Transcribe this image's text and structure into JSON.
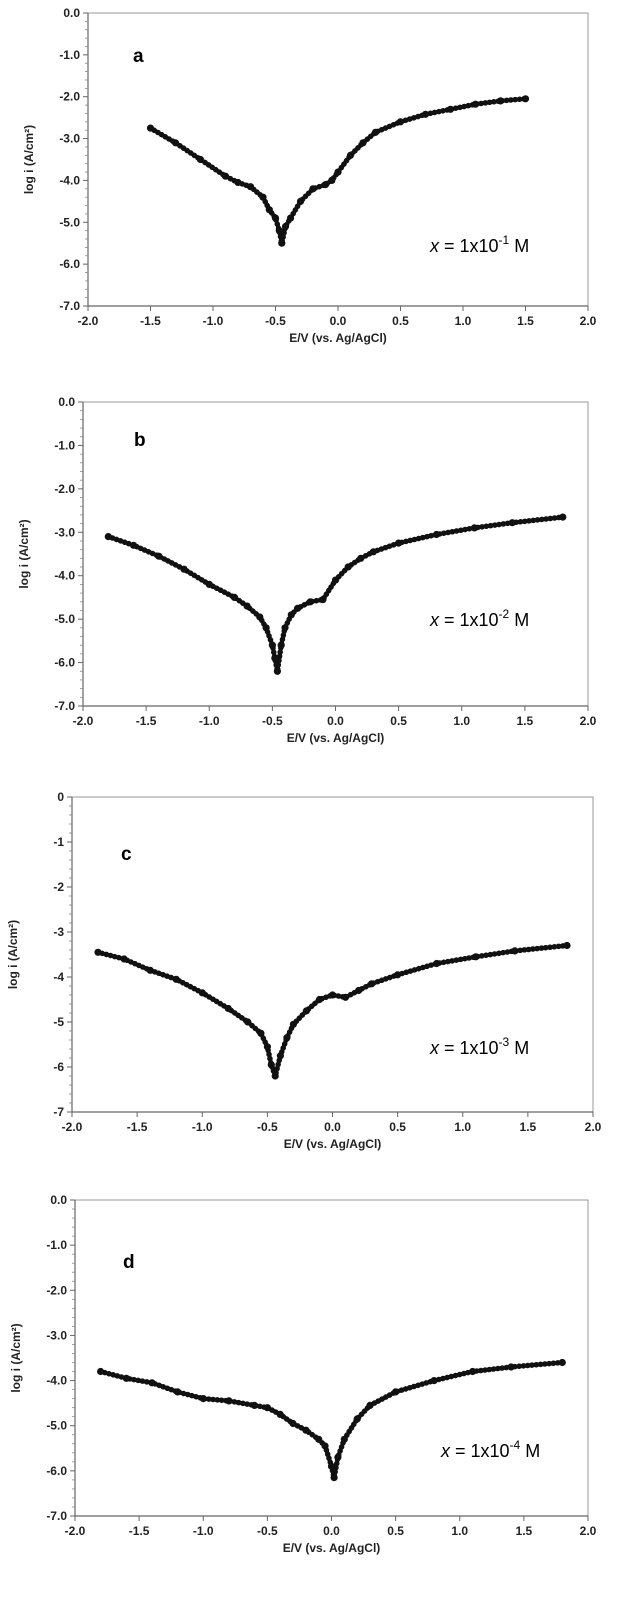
{
  "chart_data": [
    {
      "panel": "a",
      "type": "scatter",
      "title": "",
      "xlabel": "E/V (vs. Ag/AgCl)",
      "ylabel": "log i (A/cm²)",
      "xlim": [
        -2.0,
        2.0
      ],
      "ylim": [
        -7.0,
        0.0
      ],
      "x_ticks": [
        "-2.0",
        "-1.5",
        "-1.0",
        "-0.5",
        "0.0",
        "0.5",
        "1.0",
        "1.5",
        "2.0"
      ],
      "y_ticks": [
        "0.0",
        "-1.0",
        "-2.0",
        "-3.0",
        "-4.0",
        "-5.0",
        "-6.0",
        "-7.0"
      ],
      "annotation": {
        "prefix": "x",
        "mantissa": " = 1x10",
        "exponent": "-1",
        "unit": " M"
      },
      "grid": false,
      "series": [
        {
          "x": [
            -1.5,
            -1.3,
            -1.1,
            -0.9,
            -0.8,
            -0.7,
            -0.6,
            -0.55,
            -0.5,
            -0.47,
            -0.45,
            -0.42,
            -0.38,
            -0.3,
            -0.2,
            -0.1,
            -0.05,
            0.0,
            0.1,
            0.2,
            0.3,
            0.5,
            0.7,
            0.9,
            1.1,
            1.3,
            1.5
          ],
          "y": [
            -2.75,
            -3.1,
            -3.5,
            -3.9,
            -4.05,
            -4.15,
            -4.4,
            -4.7,
            -4.9,
            -5.2,
            -5.5,
            -5.1,
            -4.9,
            -4.5,
            -4.2,
            -4.1,
            -4.0,
            -3.8,
            -3.4,
            -3.1,
            -2.85,
            -2.6,
            -2.42,
            -2.3,
            -2.18,
            -2.1,
            -2.05
          ]
        }
      ]
    },
    {
      "panel": "b",
      "type": "scatter",
      "title": "",
      "xlabel": "E/V (vs. Ag/AgCl)",
      "ylabel": "log i (A/cm²)",
      "xlim": [
        -2.0,
        2.0
      ],
      "ylim": [
        -7.0,
        0.0
      ],
      "x_ticks": [
        "-2.0",
        "-1.5",
        "-1.0",
        "-0.5",
        "0.0",
        "0.5",
        "1.0",
        "1.5",
        "2.0"
      ],
      "y_ticks": [
        "0.0",
        "-1.0",
        "-2.0",
        "-3.0",
        "-4.0",
        "-5.0",
        "-6.0",
        "-7.0"
      ],
      "annotation": {
        "prefix": "x",
        "mantissa": " = 1x10",
        "exponent": "-2",
        "unit": " M"
      },
      "grid": false,
      "series": [
        {
          "x": [
            -1.8,
            -1.6,
            -1.4,
            -1.2,
            -1.0,
            -0.8,
            -0.7,
            -0.6,
            -0.55,
            -0.5,
            -0.48,
            -0.46,
            -0.43,
            -0.4,
            -0.35,
            -0.3,
            -0.2,
            -0.1,
            0.0,
            0.1,
            0.2,
            0.3,
            0.5,
            0.8,
            1.1,
            1.4,
            1.8
          ],
          "y": [
            -3.1,
            -3.3,
            -3.55,
            -3.85,
            -4.2,
            -4.5,
            -4.7,
            -4.95,
            -5.2,
            -5.6,
            -5.9,
            -6.2,
            -5.6,
            -5.2,
            -4.9,
            -4.75,
            -4.6,
            -4.55,
            -4.1,
            -3.8,
            -3.6,
            -3.45,
            -3.25,
            -3.05,
            -2.9,
            -2.78,
            -2.65
          ]
        }
      ]
    },
    {
      "panel": "c",
      "type": "scatter",
      "title": "",
      "xlabel": "E/V (vs. Ag/AgCl)",
      "ylabel": "log i (A/cm²)",
      "xlim": [
        -2.0,
        2.0
      ],
      "ylim": [
        -7,
        0
      ],
      "x_ticks": [
        "-2.0",
        "-1.5",
        "-1.0",
        "-0.5",
        "0.0",
        "0.5",
        "1.0",
        "1.5",
        "2.0"
      ],
      "y_ticks": [
        "0",
        "-1",
        "-2",
        "-3",
        "-4",
        "-5",
        "-6",
        "-7"
      ],
      "annotation": {
        "prefix": "x",
        "mantissa": " = 1x10",
        "exponent": "-3",
        "unit": " M"
      },
      "grid": false,
      "series": [
        {
          "x": [
            -1.8,
            -1.6,
            -1.4,
            -1.2,
            -1.0,
            -0.8,
            -0.65,
            -0.55,
            -0.5,
            -0.47,
            -0.44,
            -0.4,
            -0.35,
            -0.3,
            -0.2,
            -0.1,
            0.0,
            0.1,
            0.2,
            0.3,
            0.5,
            0.8,
            1.1,
            1.4,
            1.8
          ],
          "y": [
            -3.45,
            -3.6,
            -3.85,
            -4.05,
            -4.35,
            -4.7,
            -5.0,
            -5.25,
            -5.55,
            -5.95,
            -6.2,
            -5.75,
            -5.35,
            -5.05,
            -4.75,
            -4.5,
            -4.4,
            -4.45,
            -4.3,
            -4.15,
            -3.95,
            -3.7,
            -3.55,
            -3.42,
            -3.3
          ]
        }
      ]
    },
    {
      "panel": "d",
      "type": "scatter",
      "title": "",
      "xlabel": "E/V (vs. Ag/AgCl)",
      "ylabel": "log i (A/cm²)",
      "xlim": [
        -2.0,
        2.0
      ],
      "ylim": [
        -7.0,
        0.0
      ],
      "x_ticks": [
        "-2.0",
        "-1.5",
        "-1.0",
        "-0.5",
        "0.0",
        "0.5",
        "1.0",
        "1.5",
        "2.0"
      ],
      "y_ticks": [
        "0.0",
        "-1.0",
        "-2.0",
        "-3.0",
        "-4.0",
        "-5.0",
        "-6.0",
        "-7.0"
      ],
      "annotation": {
        "prefix": "x",
        "mantissa": " = 1x10",
        "exponent": "-4",
        "unit": " M"
      },
      "grid": false,
      "series": [
        {
          "x": [
            -1.8,
            -1.6,
            -1.4,
            -1.2,
            -1.0,
            -0.8,
            -0.6,
            -0.5,
            -0.4,
            -0.3,
            -0.2,
            -0.1,
            -0.05,
            0.0,
            0.02,
            0.05,
            0.1,
            0.2,
            0.3,
            0.5,
            0.8,
            1.1,
            1.4,
            1.8
          ],
          "y": [
            -3.8,
            -3.95,
            -4.05,
            -4.25,
            -4.4,
            -4.45,
            -4.55,
            -4.6,
            -4.75,
            -4.95,
            -5.1,
            -5.3,
            -5.45,
            -5.9,
            -6.15,
            -5.7,
            -5.3,
            -4.85,
            -4.55,
            -4.25,
            -4.0,
            -3.8,
            -3.7,
            -3.6
          ]
        }
      ]
    }
  ]
}
